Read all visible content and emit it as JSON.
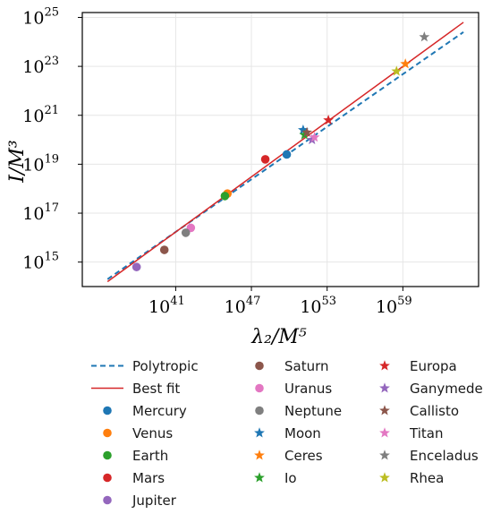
{
  "chart_data": {
    "type": "scatter",
    "xlabel": "λ₂/M⁵",
    "ylabel": "I/M³",
    "x_scale": "log",
    "y_scale": "log",
    "xlim_log10": [
      33.6,
      65.0
    ],
    "ylim_log10": [
      14.0,
      25.2
    ],
    "x_ticks": [
      {
        "base": "10",
        "exp": "41"
      },
      {
        "base": "10",
        "exp": "47"
      },
      {
        "base": "10",
        "exp": "53"
      },
      {
        "base": "10",
        "exp": "59"
      }
    ],
    "y_ticks": [
      {
        "base": "10",
        "exp": "15"
      },
      {
        "base": "10",
        "exp": "17"
      },
      {
        "base": "10",
        "exp": "19"
      },
      {
        "base": "10",
        "exp": "21"
      },
      {
        "base": "10",
        "exp": "23"
      },
      {
        "base": "10",
        "exp": "25"
      }
    ],
    "x_tick_values": [
      41,
      47,
      53,
      59
    ],
    "y_tick_values": [
      15,
      17,
      19,
      21,
      23,
      25
    ],
    "grid": true,
    "legend_position": "below",
    "lines": [
      {
        "name": "Polytropic",
        "style": "dashed",
        "color": "#1f77b4",
        "log_x": [
          35.6,
          63.8
        ],
        "log_y": [
          14.3,
          24.4
        ]
      },
      {
        "name": "Best fit",
        "style": "solid",
        "color": "#d62728",
        "log_x": [
          35.6,
          63.8
        ],
        "log_y": [
          14.2,
          24.8
        ]
      }
    ],
    "points": [
      {
        "name": "Mercury",
        "marker": "circle",
        "color": "#1f77b4",
        "log_x": 49.8,
        "log_y": 19.4
      },
      {
        "name": "Venus",
        "marker": "circle",
        "color": "#ff7f0e",
        "log_x": 45.1,
        "log_y": 17.8
      },
      {
        "name": "Earth",
        "marker": "circle",
        "color": "#2ca02c",
        "log_x": 44.9,
        "log_y": 17.7
      },
      {
        "name": "Mars",
        "marker": "circle",
        "color": "#d62728",
        "log_x": 48.1,
        "log_y": 19.2
      },
      {
        "name": "Jupiter",
        "marker": "circle",
        "color": "#9467bd",
        "log_x": 37.9,
        "log_y": 14.8
      },
      {
        "name": "Saturn",
        "marker": "circle",
        "color": "#8c564b",
        "log_x": 40.1,
        "log_y": 15.5
      },
      {
        "name": "Uranus",
        "marker": "circle",
        "color": "#e377c2",
        "log_x": 42.2,
        "log_y": 16.4
      },
      {
        "name": "Neptune",
        "marker": "circle",
        "color": "#7f7f7f",
        "log_x": 41.8,
        "log_y": 16.2
      },
      {
        "name": "Moon",
        "marker": "star",
        "color": "#1f77b4",
        "log_x": 51.1,
        "log_y": 20.4
      },
      {
        "name": "Ceres",
        "marker": "star",
        "color": "#ff7f0e",
        "log_x": 59.2,
        "log_y": 23.1
      },
      {
        "name": "Io",
        "marker": "star",
        "color": "#2ca02c",
        "log_x": 51.2,
        "log_y": 20.2
      },
      {
        "name": "Europa",
        "marker": "star",
        "color": "#d62728",
        "log_x": 53.1,
        "log_y": 20.8
      },
      {
        "name": "Ganymede",
        "marker": "star",
        "color": "#9467bd",
        "log_x": 51.8,
        "log_y": 20.0
      },
      {
        "name": "Callisto",
        "marker": "star",
        "color": "#8c564b",
        "log_x": 51.4,
        "log_y": 20.3
      },
      {
        "name": "Titan",
        "marker": "star",
        "color": "#e377c2",
        "log_x": 52.0,
        "log_y": 20.1
      },
      {
        "name": "Enceladus",
        "marker": "star",
        "color": "#7f7f7f",
        "log_x": 60.7,
        "log_y": 24.2
      },
      {
        "name": "Rhea",
        "marker": "star",
        "color": "#bcbd22",
        "log_x": 58.5,
        "log_y": 22.8
      }
    ],
    "legend": [
      {
        "label": "Polytropic",
        "kind": "line-dashed",
        "color": "#1f77b4"
      },
      {
        "label": "Best fit",
        "kind": "line-solid",
        "color": "#d62728"
      },
      {
        "label": "Mercury",
        "kind": "circle",
        "color": "#1f77b4"
      },
      {
        "label": "Venus",
        "kind": "circle",
        "color": "#ff7f0e"
      },
      {
        "label": "Earth",
        "kind": "circle",
        "color": "#2ca02c"
      },
      {
        "label": "Mars",
        "kind": "circle",
        "color": "#d62728"
      },
      {
        "label": "Jupiter",
        "kind": "circle",
        "color": "#9467bd"
      },
      {
        "label": "Saturn",
        "kind": "circle",
        "color": "#8c564b"
      },
      {
        "label": "Uranus",
        "kind": "circle",
        "color": "#e377c2"
      },
      {
        "label": "Neptune",
        "kind": "circle",
        "color": "#7f7f7f"
      },
      {
        "label": "Moon",
        "kind": "star",
        "color": "#1f77b4"
      },
      {
        "label": "Ceres",
        "kind": "star",
        "color": "#ff7f0e"
      },
      {
        "label": "Io",
        "kind": "star",
        "color": "#2ca02c"
      },
      {
        "label": "Europa",
        "kind": "star",
        "color": "#d62728"
      },
      {
        "label": "Ganymede",
        "kind": "star",
        "color": "#9467bd"
      },
      {
        "label": "Callisto",
        "kind": "star",
        "color": "#8c564b"
      },
      {
        "label": "Titan",
        "kind": "star",
        "color": "#e377c2"
      },
      {
        "label": "Enceladus",
        "kind": "star",
        "color": "#7f7f7f"
      },
      {
        "label": "Rhea",
        "kind": "star",
        "color": "#bcbd22"
      }
    ]
  }
}
